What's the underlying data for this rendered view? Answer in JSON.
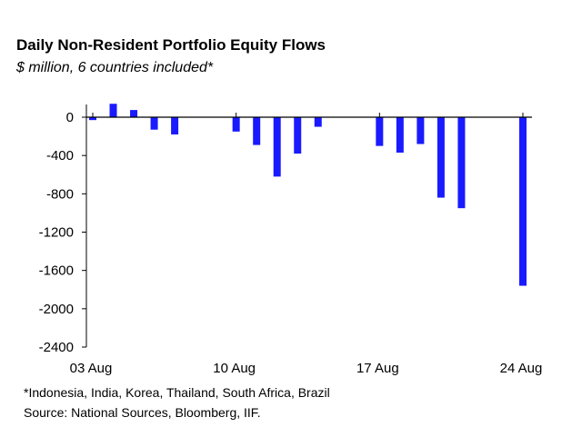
{
  "chart_data": {
    "type": "bar",
    "title": "Daily Non-Resident Portfolio Equity Flows",
    "subtitle": "$ million, 6 countries included*",
    "xlabel": "",
    "ylabel": "",
    "ylim": [
      -2400,
      200
    ],
    "yticks": [
      0,
      -400,
      -800,
      -1200,
      -1600,
      -2000,
      -2400
    ],
    "ytick_labels": [
      "0",
      "-400",
      "-800",
      "-1200",
      "-1600",
      "-2000",
      "-2400"
    ],
    "x_ticks": [
      {
        "label": "03 Aug",
        "day": 0
      },
      {
        "label": "10 Aug",
        "day": 7
      },
      {
        "label": "17 Aug",
        "day": 14
      },
      {
        "label": "24 Aug",
        "day": 21
      }
    ],
    "x_range_days": [
      0,
      21
    ],
    "bar_color": "#1a1aff",
    "grid": false,
    "legend": "none",
    "bars": [
      {
        "date": "03 Aug",
        "day": 0,
        "value": -30
      },
      {
        "date": "04 Aug",
        "day": 1,
        "value": 140
      },
      {
        "date": "05 Aug",
        "day": 2,
        "value": 75
      },
      {
        "date": "06 Aug",
        "day": 3,
        "value": -130
      },
      {
        "date": "07 Aug",
        "day": 4,
        "value": -180
      },
      {
        "date": "10 Aug",
        "day": 7,
        "value": -150
      },
      {
        "date": "11 Aug",
        "day": 8,
        "value": -290
      },
      {
        "date": "12 Aug",
        "day": 9,
        "value": -620
      },
      {
        "date": "13 Aug",
        "day": 10,
        "value": -380
      },
      {
        "date": "14 Aug",
        "day": 11,
        "value": -100
      },
      {
        "date": "17 Aug",
        "day": 14,
        "value": -300
      },
      {
        "date": "18 Aug",
        "day": 15,
        "value": -370
      },
      {
        "date": "19 Aug",
        "day": 16,
        "value": -280
      },
      {
        "date": "20 Aug",
        "day": 17,
        "value": -840
      },
      {
        "date": "21 Aug",
        "day": 18,
        "value": -950
      },
      {
        "date": "24 Aug",
        "day": 21,
        "value": -1760
      }
    ]
  },
  "notes": {
    "countries": "*Indonesia, India, Korea, Thailand, South Africa, Brazil",
    "source": "Source: National Sources, Bloomberg, IIF."
  }
}
